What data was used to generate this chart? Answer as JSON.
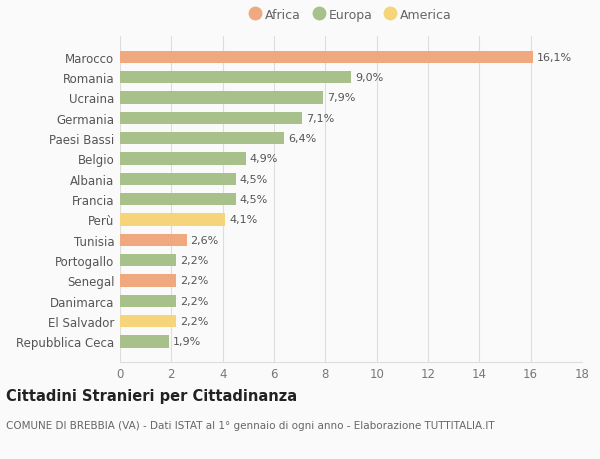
{
  "categories": [
    "Marocco",
    "Romania",
    "Ucraina",
    "Germania",
    "Paesi Bassi",
    "Belgio",
    "Albania",
    "Francia",
    "Perù",
    "Tunisia",
    "Portogallo",
    "Senegal",
    "Danimarca",
    "El Salvador",
    "Repubblica Ceca"
  ],
  "values": [
    16.1,
    9.0,
    7.9,
    7.1,
    6.4,
    4.9,
    4.5,
    4.5,
    4.1,
    2.6,
    2.2,
    2.2,
    2.2,
    2.2,
    1.9
  ],
  "labels": [
    "16,1%",
    "9,0%",
    "7,9%",
    "7,1%",
    "6,4%",
    "4,9%",
    "4,5%",
    "4,5%",
    "4,1%",
    "2,6%",
    "2,2%",
    "2,2%",
    "2,2%",
    "2,2%",
    "1,9%"
  ],
  "continents": [
    "Africa",
    "Europa",
    "Europa",
    "Europa",
    "Europa",
    "Europa",
    "Europa",
    "Europa",
    "America",
    "Africa",
    "Europa",
    "Africa",
    "Europa",
    "America",
    "Europa"
  ],
  "colors": {
    "Africa": "#F0A87E",
    "Europa": "#A8C08A",
    "America": "#F5D47A"
  },
  "legend": [
    {
      "label": "Africa",
      "color": "#F0A87E"
    },
    {
      "label": "Europa",
      "color": "#A8C08A"
    },
    {
      "label": "America",
      "color": "#F5D47A"
    }
  ],
  "title": "Cittadini Stranieri per Cittadinanza",
  "subtitle": "COMUNE DI BREBBIA (VA) - Dati ISTAT al 1° gennaio di ogni anno - Elaborazione TUTTITALIA.IT",
  "xlim": [
    0,
    18
  ],
  "xticks": [
    0,
    2,
    4,
    6,
    8,
    10,
    12,
    14,
    16,
    18
  ],
  "background_color": "#FAFAFA",
  "grid_color": "#DDDDDD",
  "bar_height": 0.6,
  "title_fontsize": 10.5,
  "subtitle_fontsize": 7.5,
  "tick_fontsize": 8.5,
  "label_fontsize": 8.0,
  "legend_fontsize": 9
}
